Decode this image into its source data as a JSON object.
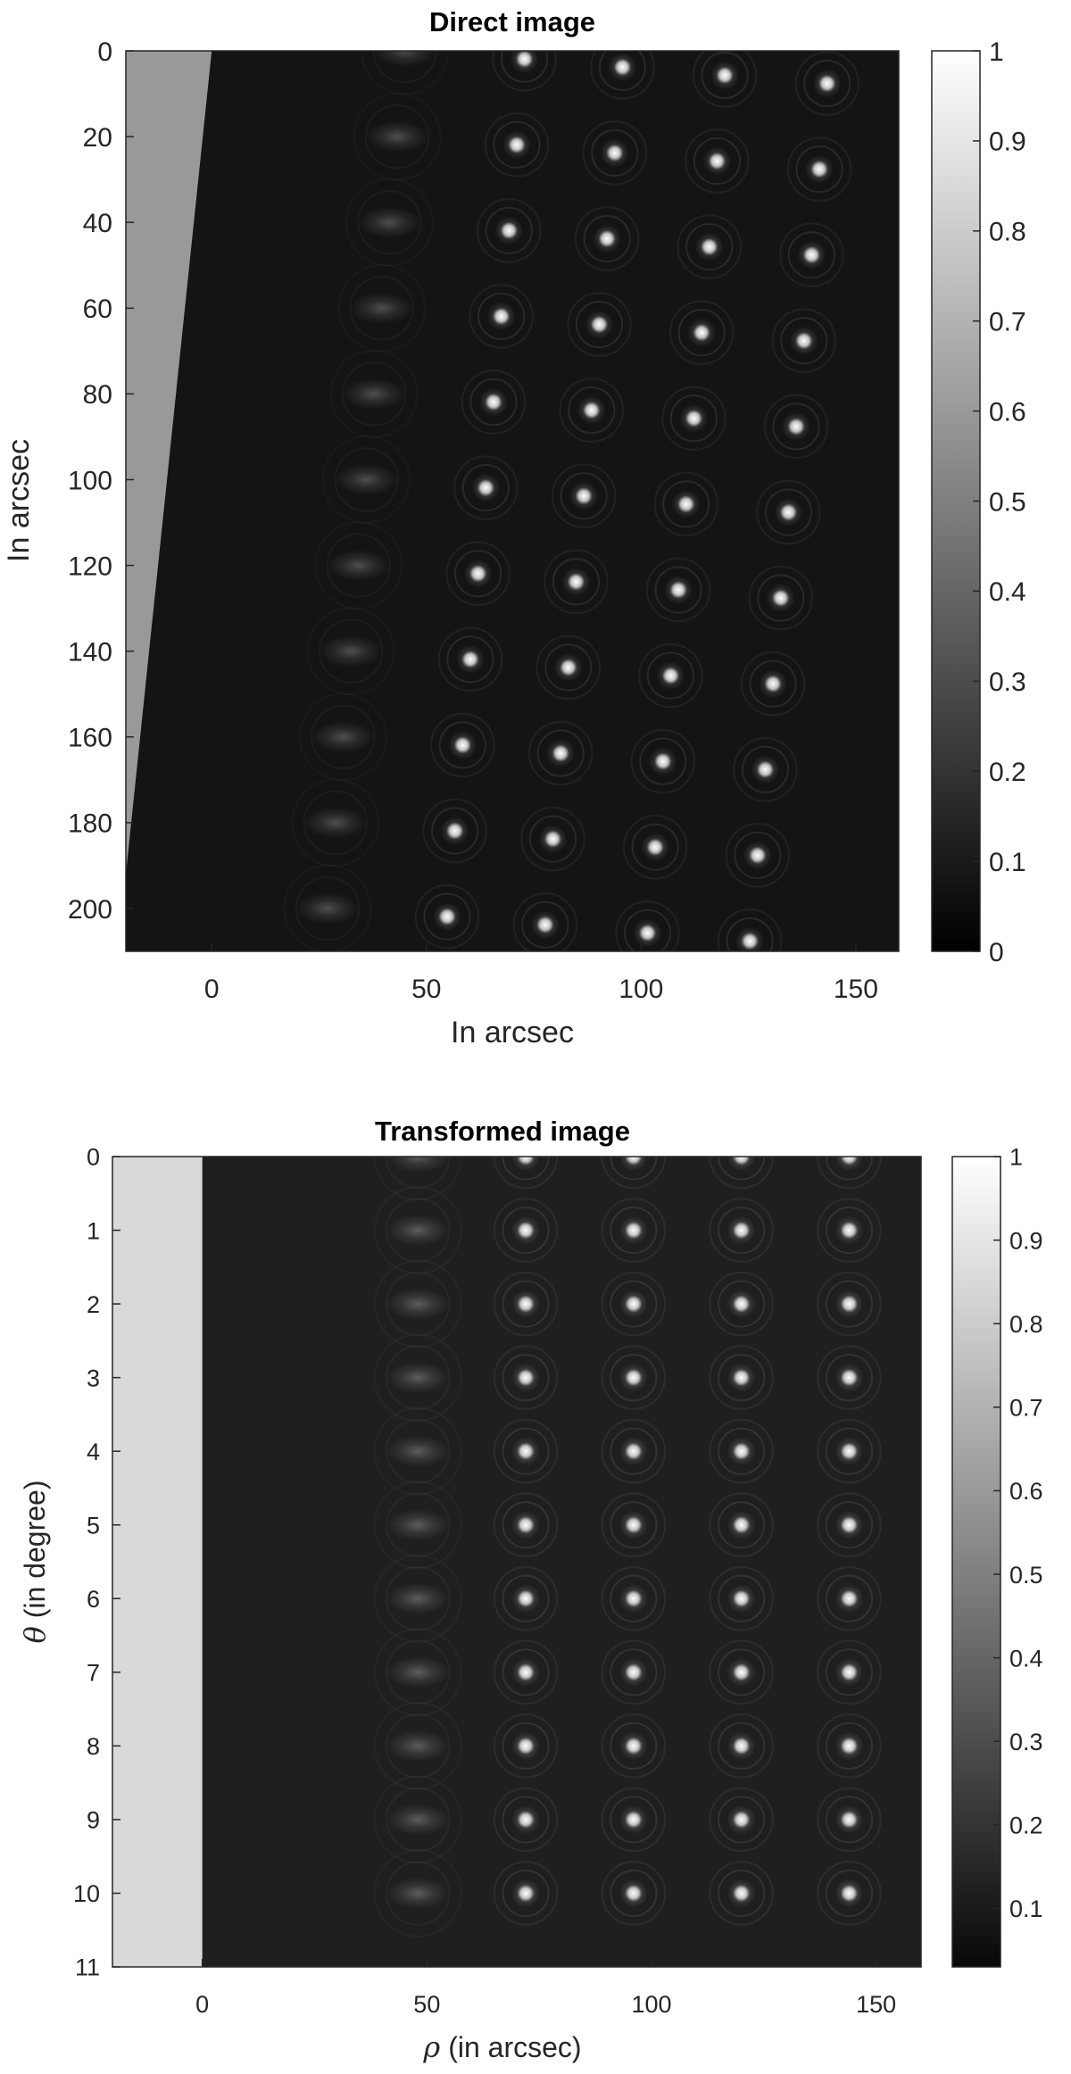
{
  "chart_data": [
    {
      "type": "heatmap",
      "title": "Direct image",
      "xlabel": "In arcsec",
      "ylabel": "In arcsec",
      "xlim": [
        -20,
        160
      ],
      "ylim": [
        0,
        210
      ],
      "y_reversed": true,
      "xticks": [
        0,
        50,
        100,
        150
      ],
      "yticks": [
        0,
        20,
        40,
        60,
        80,
        100,
        120,
        140,
        160,
        180,
        200
      ],
      "colormap": "gray",
      "clim": [
        0,
        1
      ],
      "colorbar_ticks": [
        "0",
        "0.1",
        "0.2",
        "0.3",
        "0.4",
        "0.5",
        "0.6",
        "0.7",
        "0.8",
        "0.9",
        "1"
      ],
      "colorbar_min": 0,
      "colorbar_max": 1,
      "masked_level": 0.6,
      "background_level": 0.08,
      "mask_edge_x": {
        "at_top": 0,
        "at_bottom": -20,
        "bottom_y": 192
      },
      "peak_columns": [
        {
          "intensity": 0.45,
          "x_at_top": 45,
          "slope": -0.09
        },
        {
          "intensity": 1.0,
          "x_at_top": 73,
          "slope": -0.09
        },
        {
          "intensity": 1.0,
          "x_at_top": 96,
          "slope": -0.09
        },
        {
          "intensity": 1.0,
          "x_at_top": 120,
          "slope": -0.09
        },
        {
          "intensity": 1.0,
          "x_at_top": 144,
          "slope": -0.09
        }
      ],
      "peak_rows_y": [
        0,
        20,
        40,
        60,
        80,
        100,
        120,
        140,
        160,
        180,
        200
      ],
      "row_step_per_column": 1.9
    },
    {
      "type": "heatmap",
      "title": "Transformed image",
      "xlabel": "(in arcsec)",
      "xlabel_symbol": "ρ",
      "ylabel": "(in degree)",
      "ylabel_symbol": "θ",
      "xlim": [
        -20,
        160
      ],
      "ylim": [
        0,
        11
      ],
      "y_reversed": true,
      "xticks": [
        0,
        50,
        100,
        150
      ],
      "yticks": [
        0,
        1,
        2,
        3,
        4,
        5,
        6,
        7,
        8,
        9,
        10,
        11
      ],
      "colormap": "gray",
      "clim": [
        0.03,
        1
      ],
      "colorbar_ticks": [
        "0.1",
        "0.2",
        "0.3",
        "0.4",
        "0.5",
        "0.6",
        "0.7",
        "0.8",
        "0.9",
        "1"
      ],
      "colorbar_min": 0.03,
      "colorbar_max": 1,
      "masked_level": 0.85,
      "background_level": 0.12,
      "mask_edge_x": 0,
      "peak_columns_x": [
        48,
        72,
        96,
        120,
        144
      ],
      "peak_columns_intensity": [
        0.5,
        1.0,
        1.0,
        1.0,
        1.0
      ],
      "peak_rows_y": [
        0,
        1,
        2,
        3,
        4,
        5,
        6,
        7,
        8,
        9,
        10
      ]
    }
  ]
}
